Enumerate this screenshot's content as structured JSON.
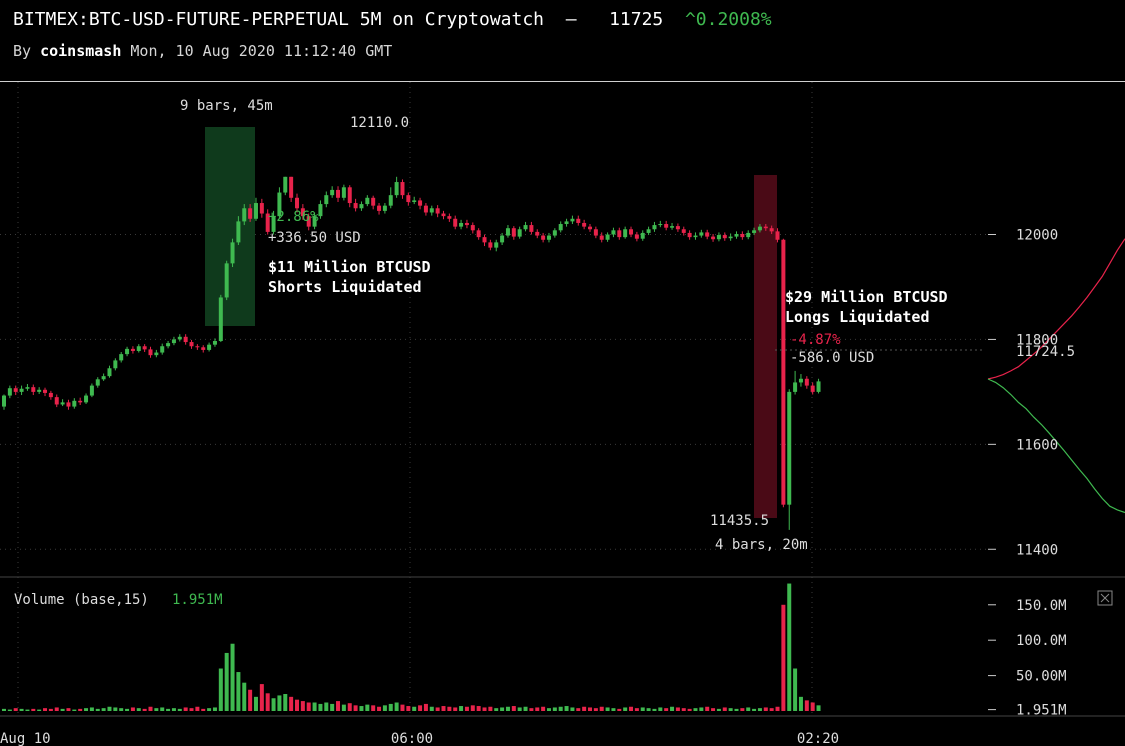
{
  "header": {
    "title_main": "BITMEX:BTC-USD-FUTURE-PERPETUAL 5M on Cryptowatch",
    "title_dash": "—",
    "last_price": "11725",
    "change_arrow": "^",
    "change_pct": "0.2008%",
    "by_label": "By",
    "author": "coinsmash",
    "timestamp": "Mon, 10 Aug 2020 11:12:40 GMT"
  },
  "annotations": {
    "left_range": "9 bars, 45m",
    "left_pct": "+2.86%",
    "left_abs": "+336.50 USD",
    "left_note_line1": "$11 Million BTCUSD",
    "left_note_line2": "Shorts Liquidated",
    "high_label": "12110.0",
    "right_note_line1": "$29 Million BTCUSD",
    "right_note_line2": "Longs Liquidated",
    "right_pct": "-4.87%",
    "right_abs": "-586.0 USD",
    "low_label": "11435.5",
    "right_range": "4 bars, 20m",
    "current_price": "11724.5"
  },
  "volume": {
    "label": "Volume (base,15)",
    "value": "1.951M",
    "close_icon": "close-icon"
  },
  "colors": {
    "up": "#3fb950",
    "down": "#e8234b",
    "up_zone": "#0f3a1c",
    "down_zone": "#4a0a16",
    "grid": "#3a3a3a"
  },
  "chart_data": [
    {
      "type": "candlestick",
      "title": "",
      "xlabel": "",
      "ylabel": "",
      "x_tick_labels": [
        "Aug 10",
        "06:00",
        "02:20"
      ],
      "y_ticks": [
        11400,
        11600,
        11800,
        12000
      ],
      "ylim": [
        11370,
        12285
      ],
      "grid": true,
      "candles": [
        [
          11672,
          11693,
          11666,
          11695
        ],
        [
          11693,
          11707,
          11688,
          11712
        ],
        [
          11707,
          11700,
          11694,
          11712
        ],
        [
          11700,
          11706,
          11694,
          11712
        ],
        [
          11706,
          11709,
          11702,
          11715
        ],
        [
          11709,
          11700,
          11694,
          11714
        ],
        [
          11700,
          11704,
          11696,
          11709
        ],
        [
          11704,
          11698,
          11692,
          11708
        ],
        [
          11698,
          11690,
          11685,
          11702
        ],
        [
          11690,
          11676,
          11671,
          11695
        ],
        [
          11676,
          11680,
          11673,
          11686
        ],
        [
          11680,
          11672,
          11666,
          11685
        ],
        [
          11672,
          11683,
          11668,
          11688
        ],
        [
          11683,
          11680,
          11675,
          11689
        ],
        [
          11680,
          11693,
          11677,
          11697
        ],
        [
          11693,
          11712,
          11690,
          11716
        ],
        [
          11712,
          11724,
          11708,
          11728
        ],
        [
          11724,
          11730,
          11721,
          11735
        ],
        [
          11730,
          11745,
          11727,
          11750
        ],
        [
          11745,
          11760,
          11741,
          11764
        ],
        [
          11760,
          11772,
          11756,
          11776
        ],
        [
          11772,
          11782,
          11768,
          11786
        ],
        [
          11782,
          11778,
          11773,
          11787
        ],
        [
          11778,
          11787,
          11775,
          11791
        ],
        [
          11787,
          11781,
          11776,
          11791
        ],
        [
          11781,
          11770,
          11765,
          11786
        ],
        [
          11770,
          11775,
          11766,
          11780
        ],
        [
          11775,
          11787,
          11771,
          11792
        ],
        [
          11787,
          11793,
          11783,
          11797
        ],
        [
          11793,
          11800,
          11789,
          11805
        ],
        [
          11800,
          11805,
          11796,
          11810
        ],
        [
          11805,
          11795,
          11790,
          11810
        ],
        [
          11795,
          11787,
          11782,
          11799
        ],
        [
          11787,
          11785,
          11780,
          11791
        ],
        [
          11785,
          11780,
          11775,
          11789
        ],
        [
          11780,
          11790,
          11777,
          11794
        ],
        [
          11790,
          11797,
          11786,
          11802
        ],
        [
          11797,
          11880,
          11795,
          11885
        ],
        [
          11880,
          11945,
          11875,
          11950
        ],
        [
          11945,
          11985,
          11938,
          11992
        ],
        [
          11985,
          12025,
          11980,
          12035
        ],
        [
          12025,
          12050,
          12018,
          12058
        ],
        [
          12050,
          12030,
          12024,
          12058
        ],
        [
          12030,
          12060,
          12026,
          12070
        ],
        [
          12060,
          12040,
          12032,
          12068
        ],
        [
          12040,
          12005,
          12000,
          12048
        ],
        [
          12005,
          12035,
          12000,
          12045
        ],
        [
          12035,
          12080,
          12031,
          12090
        ],
        [
          12080,
          12110,
          12075,
          12110
        ],
        [
          12110,
          12070,
          12062,
          12110
        ],
        [
          12070,
          12050,
          12042,
          12078
        ],
        [
          12050,
          12035,
          12028,
          12058
        ],
        [
          12035,
          12015,
          12008,
          12040
        ],
        [
          12015,
          12035,
          12010,
          12042
        ],
        [
          12035,
          12058,
          12030,
          12065
        ],
        [
          12058,
          12075,
          12052,
          12082
        ],
        [
          12075,
          12085,
          12070,
          12092
        ],
        [
          12085,
          12070,
          12062,
          12092
        ],
        [
          12070,
          12090,
          12065,
          12095
        ],
        [
          12090,
          12060,
          12052,
          12094
        ],
        [
          12060,
          12050,
          12044,
          12068
        ],
        [
          12050,
          12058,
          12045,
          12063
        ],
        [
          12058,
          12070,
          12054,
          12075
        ],
        [
          12070,
          12055,
          12048,
          12074
        ],
        [
          12055,
          12045,
          12038,
          12060
        ],
        [
          12045,
          12055,
          12040,
          12060
        ],
        [
          12055,
          12075,
          12050,
          12090
        ],
        [
          12075,
          12100,
          12070,
          12110
        ],
        [
          12100,
          12075,
          12068,
          12105
        ],
        [
          12075,
          12062,
          12055,
          12080
        ],
        [
          12062,
          12065,
          12058,
          12072
        ],
        [
          12065,
          12055,
          12048,
          12070
        ],
        [
          12055,
          12042,
          12036,
          12060
        ],
        [
          12042,
          12050,
          12036,
          12055
        ],
        [
          12050,
          12040,
          12033,
          12056
        ],
        [
          12040,
          12035,
          12029,
          12045
        ],
        [
          12035,
          12030,
          12024,
          12040
        ],
        [
          12030,
          12015,
          12010,
          12036
        ],
        [
          12015,
          12022,
          12010,
          12028
        ],
        [
          12022,
          12018,
          12012,
          12028
        ],
        [
          12018,
          12008,
          12002,
          12023
        ],
        [
          12008,
          11995,
          11990,
          12012
        ],
        [
          11995,
          11985,
          11978,
          12000
        ],
        [
          11985,
          11975,
          11970,
          11990
        ],
        [
          11975,
          11985,
          11968,
          11990
        ],
        [
          11985,
          11998,
          11980,
          12003
        ],
        [
          11998,
          12012,
          11994,
          12018
        ],
        [
          12012,
          11996,
          11990,
          12016
        ],
        [
          11996,
          12010,
          11992,
          12015
        ],
        [
          12010,
          12018,
          12006,
          12024
        ],
        [
          12018,
          12005,
          12000,
          12024
        ],
        [
          12005,
          11998,
          11993,
          12010
        ],
        [
          11998,
          11990,
          11985,
          12003
        ],
        [
          11990,
          11998,
          11985,
          12003
        ],
        [
          11998,
          12008,
          11994,
          12012
        ],
        [
          12008,
          12020,
          12004,
          12025
        ],
        [
          12020,
          12025,
          12015,
          12030
        ],
        [
          12025,
          12030,
          12020,
          12036
        ],
        [
          12030,
          12022,
          12017,
          12036
        ],
        [
          12022,
          12015,
          12010,
          12028
        ],
        [
          12015,
          12010,
          12005,
          12020
        ],
        [
          12010,
          11998,
          11993,
          12015
        ],
        [
          11998,
          11990,
          11985,
          12004
        ],
        [
          11990,
          12000,
          11986,
          12004
        ],
        [
          12000,
          12008,
          11995,
          12013
        ],
        [
          12008,
          11995,
          11990,
          12013
        ],
        [
          11995,
          12010,
          11992,
          12015
        ],
        [
          12010,
          12000,
          11995,
          12015
        ],
        [
          12000,
          11992,
          11987,
          12005
        ],
        [
          11992,
          12003,
          11988,
          12008
        ],
        [
          12003,
          12010,
          11999,
          12015
        ],
        [
          12010,
          12018,
          12005,
          12024
        ],
        [
          12018,
          12020,
          12014,
          12026
        ],
        [
          12020,
          12013,
          12008,
          12026
        ],
        [
          12013,
          12016,
          12009,
          12022
        ],
        [
          12016,
          12010,
          12005,
          12021
        ],
        [
          12010,
          12003,
          11998,
          12015
        ],
        [
          12003,
          11995,
          11990,
          12008
        ],
        [
          11995,
          11998,
          11990,
          12004
        ],
        [
          11998,
          12004,
          11994,
          12009
        ],
        [
          12004,
          11996,
          11991,
          12009
        ],
        [
          11996,
          11991,
          11986,
          12001
        ],
        [
          11991,
          11999,
          11987,
          12004
        ],
        [
          11999,
          11993,
          11988,
          12004
        ],
        [
          11993,
          11996,
          11988,
          12002
        ],
        [
          11996,
          12001,
          11992,
          12006
        ],
        [
          12001,
          11995,
          11990,
          12006
        ],
        [
          11995,
          12003,
          11991,
          12008
        ],
        [
          12003,
          12008,
          11999,
          12013
        ],
        [
          12008,
          12015,
          12004,
          12020
        ],
        [
          12015,
          12012,
          12007,
          12020
        ],
        [
          12012,
          12006,
          12001,
          12017
        ],
        [
          12006,
          11990,
          11985,
          12012
        ],
        [
          11990,
          11485,
          11480,
          11992
        ],
        [
          11485,
          11700,
          11437,
          11705
        ],
        [
          11700,
          11718,
          11695,
          11740
        ],
        [
          11718,
          11725,
          11710,
          11734
        ],
        [
          11725,
          11712,
          11706,
          11730
        ],
        [
          11712,
          11700,
          11695,
          11718
        ],
        [
          11700,
          11720,
          11697,
          11725
        ]
      ],
      "volume_millions": [
        3,
        2,
        4,
        3,
        2,
        3,
        2,
        4,
        3,
        5,
        3,
        4,
        2,
        3,
        4,
        5,
        3,
        4,
        6,
        5,
        4,
        3,
        5,
        4,
        3,
        6,
        4,
        5,
        3,
        4,
        3,
        5,
        4,
        6,
        3,
        4,
        5,
        60,
        82,
        95,
        55,
        40,
        30,
        20,
        38,
        25,
        18,
        22,
        24,
        20,
        16,
        14,
        12,
        12,
        10,
        12,
        10,
        14,
        9,
        11,
        8,
        7,
        9,
        8,
        6,
        8,
        10,
        12,
        9,
        7,
        6,
        8,
        10,
        6,
        5,
        7,
        6,
        5,
        7,
        6,
        8,
        7,
        5,
        6,
        4,
        5,
        6,
        7,
        5,
        6,
        4,
        5,
        6,
        4,
        5,
        6,
        7,
        5,
        4,
        6,
        5,
        4,
        6,
        5,
        4,
        3,
        5,
        6,
        4,
        5,
        4,
        3,
        5,
        4,
        6,
        5,
        4,
        3,
        4,
        5,
        6,
        4,
        3,
        5,
        4,
        3,
        4,
        5,
        3,
        4,
        5,
        4,
        6,
        150,
        180,
        60,
        20,
        15,
        12,
        8
      ],
      "volume_ticks": [
        "150.0M",
        "100.0M",
        "50.00M",
        "1.951M"
      ]
    },
    {
      "type": "line",
      "title": "",
      "series": [
        {
          "color": "#e8234b",
          "y": [
            11724.5,
            11728,
            11733,
            11740,
            11748,
            11760,
            11772,
            11785,
            11800,
            11815,
            11830,
            11845,
            11862,
            11880,
            11900,
            11920,
            11945,
            11970,
            11992
          ]
        },
        {
          "color": "#3fb950",
          "y": [
            11724.5,
            11718,
            11708,
            11695,
            11680,
            11668,
            11652,
            11638,
            11622,
            11605,
            11588,
            11570,
            11552,
            11535,
            11515,
            11497,
            11482,
            11475,
            11470
          ]
        }
      ]
    }
  ]
}
